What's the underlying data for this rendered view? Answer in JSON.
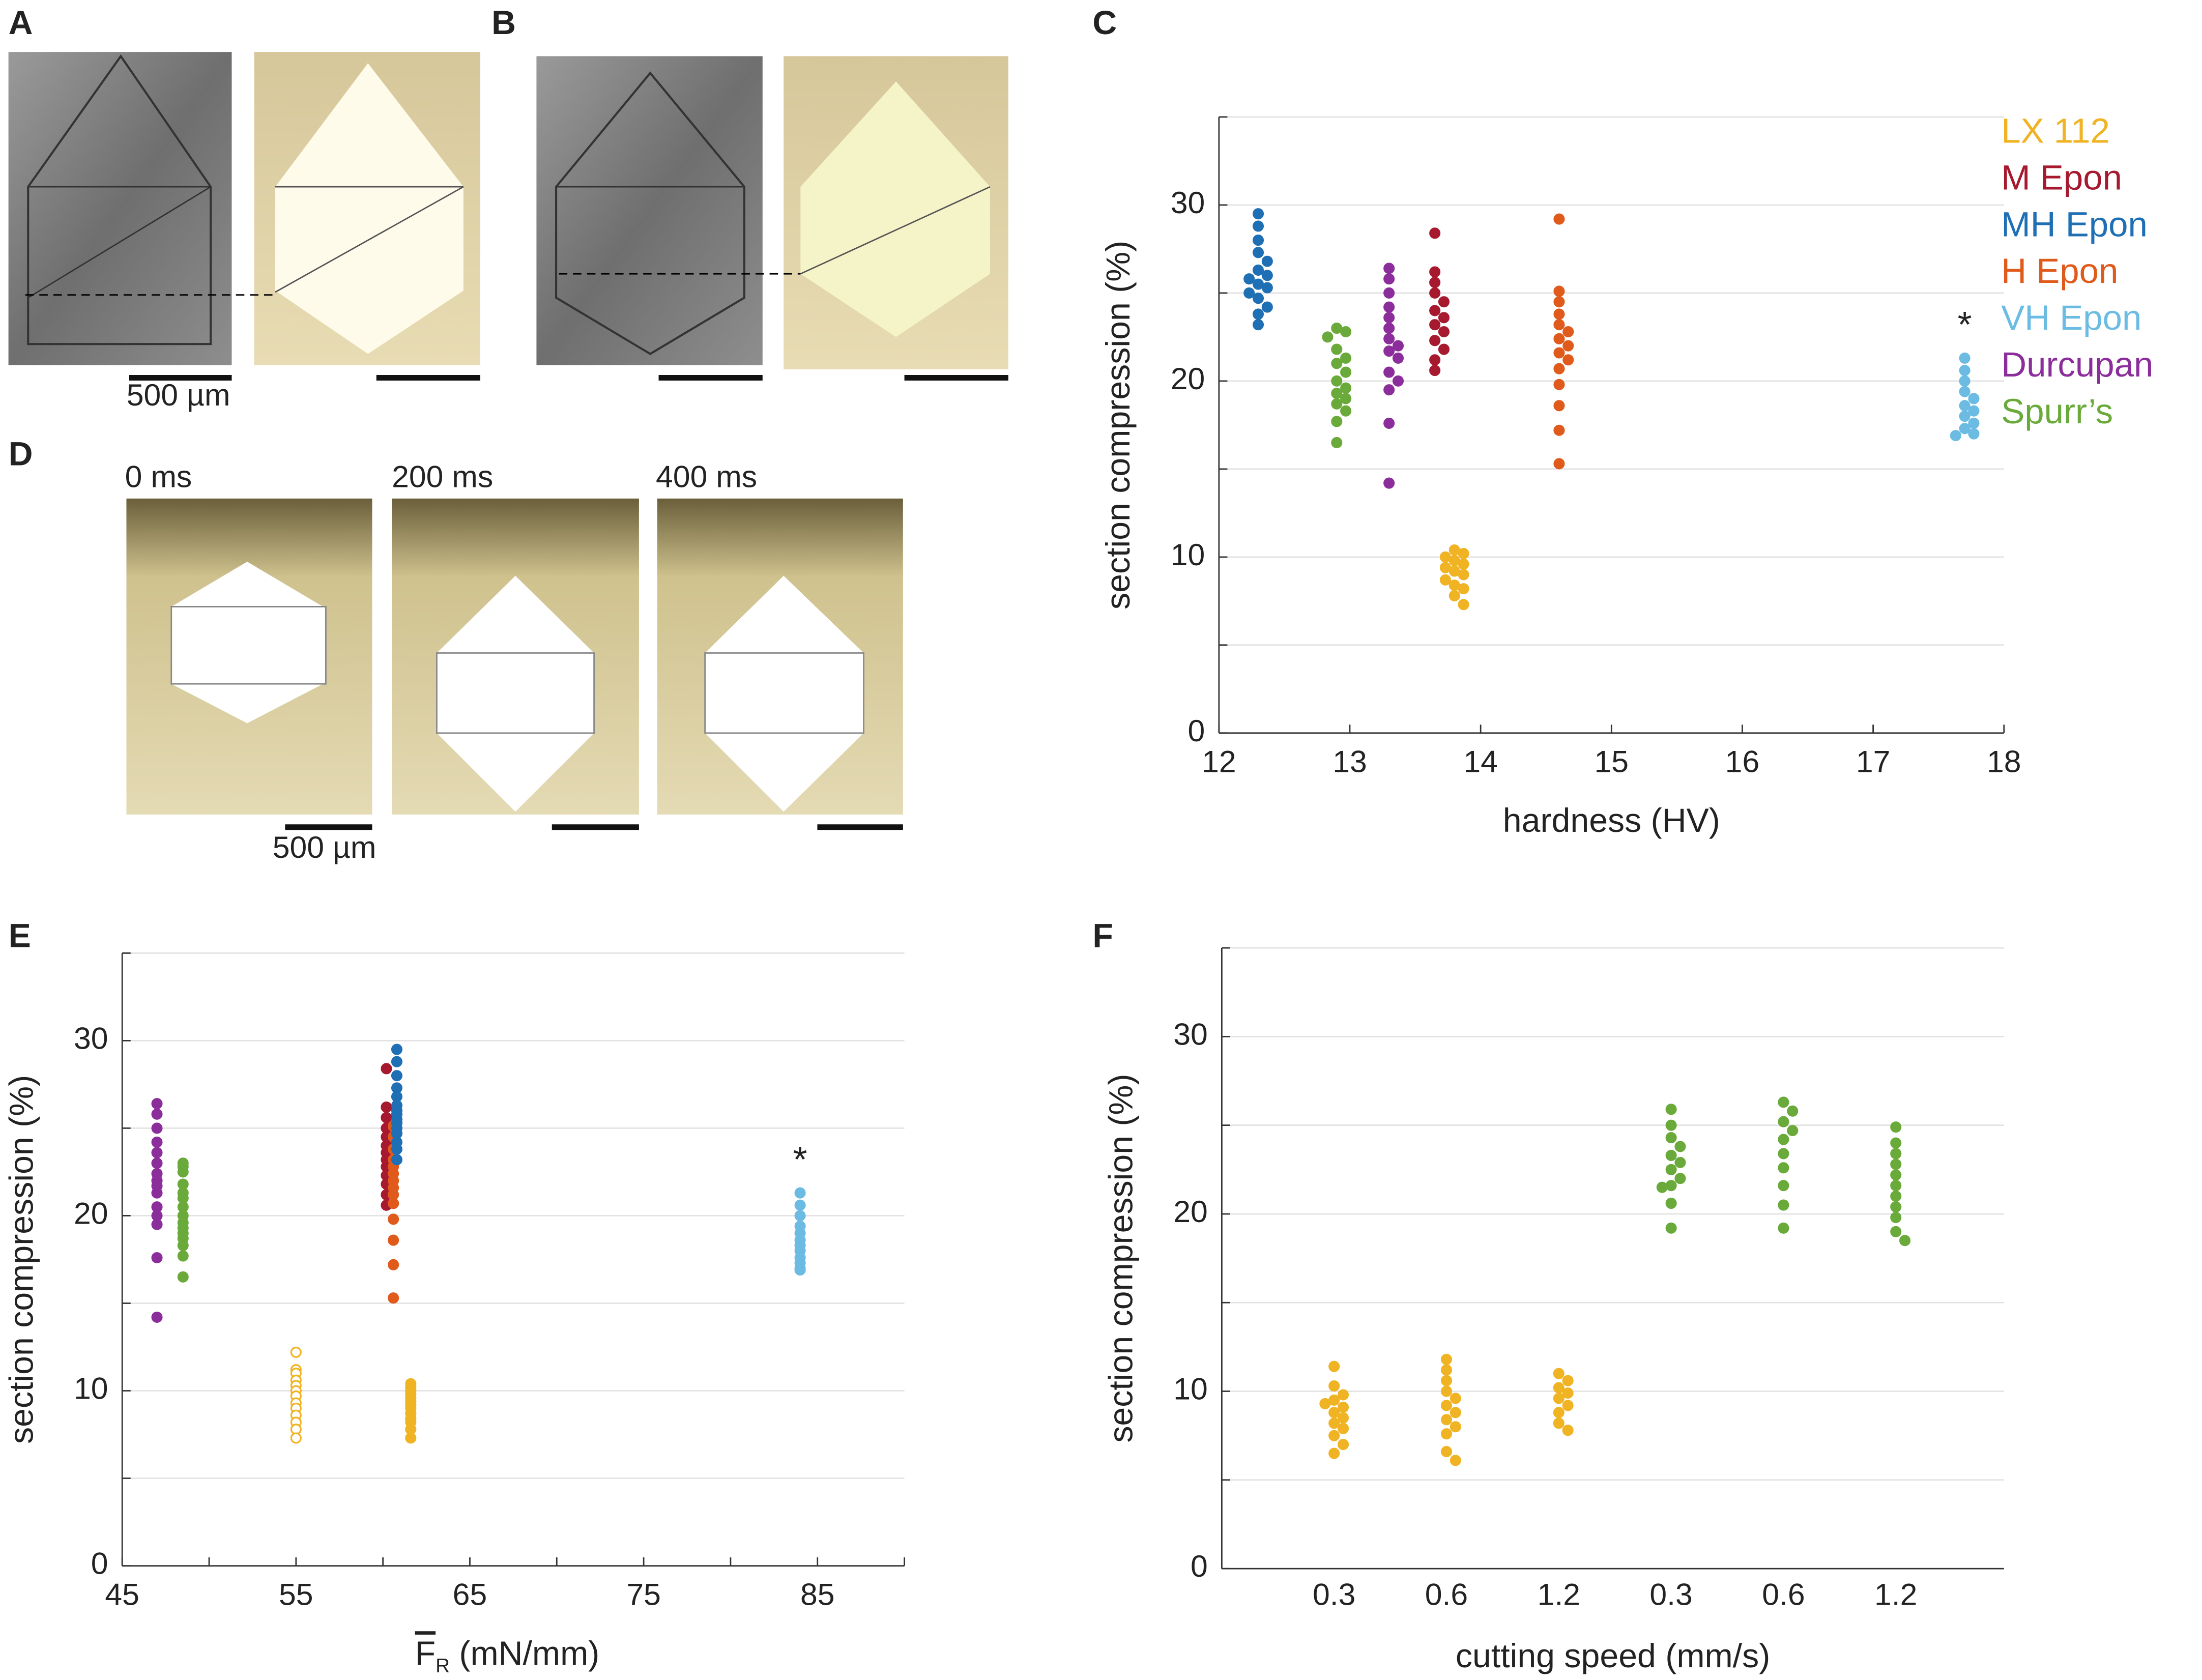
{
  "panel_letters": [
    "A",
    "B",
    "C",
    "D",
    "E",
    "F"
  ],
  "scale_bar_labels": [
    "500 µm",
    "500 µm"
  ],
  "time_labels": [
    "0 ms",
    "200 ms",
    "400 ms"
  ],
  "chart_data": [
    {
      "type": "beeswarm",
      "x_label": "hardness (HV)",
      "y_label": "section compression (%)",
      "xlim": [
        12,
        18
      ],
      "xticks": [
        12,
        13,
        14,
        15,
        16,
        17,
        18
      ],
      "ylim": [
        0,
        35
      ],
      "yticks": [
        0,
        10,
        20,
        30
      ],
      "minor_yticks": [
        5,
        15,
        25,
        35
      ],
      "grid": true,
      "legend": "right",
      "series": [
        {
          "name": "LX 112",
          "color": "#f0b323",
          "x": 13.8,
          "values": [
            10.4,
            10.2,
            10,
            9.8,
            9.6,
            9.4,
            9.2,
            9,
            8.7,
            8.4,
            8.2,
            7.8,
            7.3
          ]
        },
        {
          "name": "M Epon",
          "color": "#a6192e",
          "x": 13.65,
          "values": [
            28.4,
            26.2,
            25.6,
            25,
            24.5,
            24,
            23.6,
            23.2,
            22.8,
            22.3,
            21.8,
            21.2,
            20.6
          ]
        },
        {
          "name": "MH Epon",
          "color": "#1f6fb5",
          "x": 12.3,
          "values": [
            29.5,
            28.8,
            28,
            27.3,
            26.8,
            26.3,
            26,
            25.8,
            25.5,
            25.3,
            25,
            24.7,
            24.2,
            23.8,
            23.2
          ]
        },
        {
          "name": "H Epon",
          "color": "#e05a1c",
          "x": 14.6,
          "values": [
            29.2,
            25.1,
            24.5,
            23.8,
            23.2,
            22.8,
            22.4,
            22,
            21.6,
            21.2,
            20.7,
            19.8,
            18.6,
            17.2,
            15.3
          ]
        },
        {
          "name": "VH Epon",
          "color": "#6bbbe3",
          "x": 17.7,
          "values": [
            21.3,
            20.6,
            20,
            19.4,
            19,
            18.6,
            18.3,
            18,
            17.6,
            17.3,
            17,
            16.9
          ],
          "annotation": "*"
        },
        {
          "name": "Durcupan",
          "color": "#8b2d9a",
          "x": 13.3,
          "values": [
            26.4,
            25.8,
            25,
            24.2,
            23.6,
            23,
            22.4,
            22,
            21.7,
            21.3,
            20.5,
            20,
            19.5,
            17.6,
            14.2
          ]
        },
        {
          "name": "Spurr’s",
          "color": "#6aaa3a",
          "x": 12.9,
          "values": [
            23,
            22.8,
            22.5,
            21.8,
            21.3,
            21,
            20.5,
            20,
            19.6,
            19.3,
            19,
            18.7,
            18.3,
            17.7,
            16.5
          ]
        }
      ]
    },
    {
      "type": "strip",
      "x_label_symbol": "F",
      "x_label_subscript": "R",
      "x_label_unit": " (mN/mm)",
      "y_label": "section compression (%)",
      "xlim": [
        45,
        90
      ],
      "xticks": [
        45,
        55,
        65,
        75,
        85
      ],
      "minor_xticks": [
        50,
        60,
        70,
        80,
        90
      ],
      "ylim": [
        0,
        35
      ],
      "yticks": [
        0,
        10,
        20,
        30
      ],
      "minor_yticks": [
        5,
        15,
        25,
        35
      ],
      "grid": true,
      "series": [
        {
          "color": "#8b2d9a",
          "filled": true,
          "x": 47,
          "values": [
            26.4,
            25.8,
            25,
            24.2,
            23.6,
            23,
            22.4,
            22,
            21.7,
            21.3,
            20.5,
            20,
            19.5,
            17.6,
            14.2
          ]
        },
        {
          "color": "#6aaa3a",
          "filled": true,
          "x": 48.5,
          "values": [
            23,
            22.8,
            22.5,
            21.8,
            21.3,
            21,
            20.5,
            20,
            19.6,
            19.3,
            19,
            18.7,
            18.3,
            17.7,
            16.5
          ]
        },
        {
          "color": "#f0b323",
          "filled": false,
          "x": 55,
          "values": [
            12.2,
            11.2,
            11,
            10.6,
            10.3,
            10,
            9.7,
            9.3,
            9,
            8.6,
            8.2,
            7.8,
            7.3
          ]
        },
        {
          "color": "#a6192e",
          "filled": true,
          "x": 60.2,
          "values": [
            28.4,
            26.2,
            25.6,
            25,
            24.5,
            24,
            23.6,
            23.2,
            22.8,
            22.3,
            21.8,
            21.2,
            20.6
          ]
        },
        {
          "color": "#e05a1c",
          "filled": true,
          "x": 60.6,
          "values": [
            25.1,
            24.5,
            23.8,
            23.2,
            22.8,
            22.4,
            22,
            21.6,
            21.2,
            20.7,
            19.8,
            18.6,
            17.2,
            15.3
          ]
        },
        {
          "color": "#1f6fb5",
          "filled": true,
          "x": 60.8,
          "values": [
            29.5,
            28.8,
            28,
            27.3,
            26.8,
            26.3,
            26,
            25.8,
            25.5,
            25.3,
            25,
            24.7,
            24.2,
            23.8,
            23.2
          ]
        },
        {
          "color": "#f0b323",
          "filled": true,
          "x": 61.6,
          "values": [
            10.4,
            10.2,
            10,
            9.8,
            9.6,
            9.4,
            9.2,
            9,
            8.7,
            8.4,
            8.2,
            7.8,
            7.3
          ]
        },
        {
          "color": "#6bbbe3",
          "filled": true,
          "x": 84,
          "values": [
            21.3,
            20.6,
            20,
            19.4,
            19,
            18.6,
            18.3,
            18,
            17.6,
            17.3,
            17,
            16.9
          ],
          "annotation": "*"
        }
      ]
    },
    {
      "type": "strip_categorical",
      "x_label": "cutting speed (mm/s)",
      "y_label": "section compression (%)",
      "categories": [
        "0.3",
        "0.6",
        "1.2",
        "0.3",
        "0.6",
        "1.2"
      ],
      "ylim": [
        0,
        35
      ],
      "yticks": [
        0,
        10,
        20,
        30
      ],
      "minor_yticks": [
        5,
        15,
        25,
        35
      ],
      "grid": true,
      "series": [
        {
          "color": "#f0b323",
          "values": [
            [
              11.4,
              10.3,
              9.8,
              9.5,
              9.3,
              9.1,
              8.8,
              8.5,
              8.2,
              7.9,
              7.5,
              7,
              6.5
            ],
            [
              11.8,
              11.2,
              10.6,
              10,
              9.6,
              9.2,
              8.8,
              8.4,
              8,
              7.6,
              6.6,
              6.1
            ],
            [
              11,
              10.6,
              10.2,
              9.9,
              9.6,
              9.2,
              8.8,
              8.2,
              7.8
            ],
            null,
            null,
            null
          ]
        },
        {
          "color": "#6aaa3a",
          "values": [
            null,
            null,
            null,
            [
              25.9,
              25,
              24.3,
              23.8,
              23.3,
              22.9,
              22.5,
              22,
              21.6,
              21.5,
              20.6,
              19.2
            ],
            [
              26.3,
              25.8,
              25.2,
              24.7,
              24.2,
              23.4,
              22.6,
              21.6,
              20.5,
              19.2
            ],
            [
              24.9,
              24,
              23.4,
              22.8,
              22.2,
              21.6,
              21,
              20.4,
              19.8,
              19,
              18.5
            ]
          ]
        }
      ]
    }
  ]
}
